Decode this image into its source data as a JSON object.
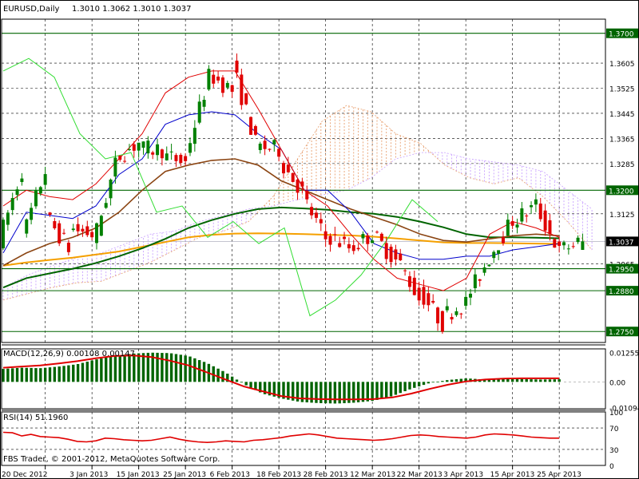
{
  "header": {
    "symbol": "EURUSD,Daily",
    "ohlc": "1.3010 1.3062 1.3010 1.3037"
  },
  "copyright": "FBS Trader, © 2001-2012, MetaQuotes Software Corp.",
  "colors": {
    "bull": "#008000",
    "bear": "#e00000",
    "grid": "#000000",
    "levels": "#006400",
    "fast_ma": "#006400",
    "mid_ma": "#8b4513",
    "slow_ma": "#f5a000",
    "tenkan": "#e00000",
    "kijun": "#0000cc",
    "chikou": "#33dd33",
    "kumo_bull": "#e8a070",
    "kumo_bear": "#c8a0ff"
  },
  "chart_data": [
    {
      "type": "candlestick",
      "title": "EURUSD,Daily",
      "ohlc_label": "1.3010 1.3062 1.3010 1.3037",
      "ylim": [
        1.2715,
        1.3745
      ],
      "y_ticks": [
        "1.3605",
        "1.3525",
        "1.3445",
        "1.3365",
        "1.3285",
        "1.3125",
        "1.2965"
      ],
      "levels": [
        {
          "value": 1.37,
          "label": "1.3700"
        },
        {
          "value": 1.32,
          "label": "1.3200"
        },
        {
          "value": 1.295,
          "label": "1.2950"
        },
        {
          "value": 1.288,
          "label": "1.2880"
        },
        {
          "value": 1.275,
          "label": "1.2750"
        }
      ],
      "current": {
        "value": 1.3037,
        "label": "1.3037"
      },
      "x_labels": [
        "20 Dec 2012",
        "3 Jan 2013",
        "15 Jan 2013",
        "25 Jan 2013",
        "6 Feb 2013",
        "18 Feb 2013",
        "28 Feb 2013",
        "12 Mar 2013",
        "22 Mar 2013",
        "3 Apr 2013",
        "15 Apr 2013",
        "25 Apr 2013"
      ],
      "anchors": [
        [
          1.3035,
          1.3255
        ],
        [
          1.3045,
          1.3255
        ],
        [
          1.312,
          1.302
        ],
        [
          1.308,
          1.306
        ],
        [
          1.302,
          1.327
        ],
        [
          1.33,
          1.335
        ],
        [
          1.333,
          1.333
        ],
        [
          1.331,
          1.329
        ],
        [
          1.331,
          1.355
        ],
        [
          1.357,
          1.352
        ],
        [
          1.36,
          1.336
        ],
        [
          1.334,
          1.333
        ],
        [
          1.33,
          1.32
        ],
        [
          1.318,
          1.305
        ],
        [
          1.306,
          1.302
        ],
        [
          1.301,
          1.306
        ],
        [
          1.306,
          1.298
        ],
        [
          1.299,
          1.286
        ],
        [
          1.288,
          1.278
        ],
        [
          1.28,
          1.284
        ],
        [
          1.285,
          1.298
        ],
        [
          1.299,
          1.31
        ],
        [
          1.31,
          1.315
        ],
        [
          1.315,
          1.301
        ],
        [
          1.301,
          1.3037
        ]
      ],
      "series": [
        {
          "name": "",
          "style": "cloud",
          "span_a": [
            1.285,
            1.287,
            1.289,
            1.2905,
            1.291,
            1.294,
            1.297,
            1.301,
            1.305,
            1.307,
            1.31,
            1.318,
            1.33,
            1.342,
            1.347,
            1.345,
            1.338,
            1.335,
            1.328,
            1.324,
            1.322,
            1.324,
            1.318,
            1.31,
            1.301
          ],
          "span_b": [
            1.289,
            1.293,
            1.296,
            1.2985,
            1.3,
            1.303,
            1.306,
            1.307,
            1.31,
            1.312,
            1.314,
            1.315,
            1.317,
            1.3185,
            1.32,
            1.324,
            1.33,
            1.332,
            1.332,
            1.33,
            1.329,
            1.328,
            1.326,
            1.32,
            1.314
          ]
        },
        {
          "name": "",
          "style": "slow_ma",
          "values": [
            1.296,
            1.297,
            1.2978,
            1.2985,
            1.2995,
            1.3005,
            1.302,
            1.3035,
            1.305,
            1.3058,
            1.3062,
            1.3063,
            1.3062,
            1.306,
            1.3058,
            1.3056,
            1.3052,
            1.3046,
            1.304,
            1.3034,
            1.3032,
            1.3032,
            1.3031,
            1.303,
            1.3029
          ]
        },
        {
          "name": "",
          "style": "fast_ma",
          "values": [
            1.289,
            1.292,
            1.2935,
            1.295,
            1.2968,
            1.299,
            1.3015,
            1.3045,
            1.308,
            1.3105,
            1.3125,
            1.314,
            1.3145,
            1.3142,
            1.3138,
            1.313,
            1.3125,
            1.3115,
            1.31,
            1.3082,
            1.306,
            1.305,
            1.305,
            1.3049,
            1.3047
          ]
        },
        {
          "name": "",
          "style": "mid_ma",
          "values": [
            1.296,
            1.3,
            1.303,
            1.305,
            1.308,
            1.313,
            1.32,
            1.326,
            1.328,
            1.3295,
            1.33,
            1.328,
            1.323,
            1.32,
            1.317,
            1.314,
            1.3115,
            1.309,
            1.306,
            1.304,
            1.3035,
            1.3045,
            1.3055,
            1.306,
            1.3055
          ]
        },
        {
          "name": "",
          "style": "kijun",
          "values": [
            1.3,
            1.313,
            1.312,
            1.311,
            1.315,
            1.325,
            1.33,
            1.341,
            1.344,
            1.345,
            1.344,
            1.338,
            1.333,
            1.32,
            1.32,
            1.313,
            1.303,
            1.3,
            1.298,
            1.298,
            1.299,
            1.299,
            1.301,
            1.302,
            1.303
          ]
        },
        {
          "name": "",
          "style": "tenkan",
          "values": [
            1.315,
            1.32,
            1.318,
            1.317,
            1.322,
            1.33,
            1.338,
            1.351,
            1.356,
            1.358,
            1.358,
            1.346,
            1.333,
            1.32,
            1.315,
            1.306,
            1.298,
            1.292,
            1.29,
            1.288,
            1.292,
            1.306,
            1.31,
            1.308,
            1.305
          ]
        },
        {
          "name": "",
          "style": "chikou",
          "values": [
            1.358,
            1.362,
            1.356,
            1.338,
            1.33,
            1.332,
            1.313,
            1.315,
            1.305,
            1.31,
            1.303,
            1.308,
            1.28,
            1.285,
            1.293,
            1.304,
            1.317,
            1.31
          ]
        }
      ]
    },
    {
      "type": "bar",
      "title": "MACD(12,26,9) 0.00108 0.00147",
      "ylim": [
        -0.0114,
        0.014
      ],
      "y_ticks": [
        "0.01255",
        "0.00",
        "-0.01094"
      ],
      "histogram": [
        0.0055,
        0.006,
        0.0058,
        0.0065,
        0.0075,
        0.0095,
        0.011,
        0.012,
        0.0124,
        0.0122,
        0.011,
        0.008,
        0.004,
        -0.001,
        -0.005,
        -0.007,
        -0.0085,
        -0.009,
        -0.0092,
        -0.0088,
        -0.008,
        -0.006,
        -0.003,
        -0.0005,
        0.0008,
        0.0015,
        0.001,
        0.0012,
        0.0012,
        0.001,
        0.0011
      ],
      "signal": [
        0.006,
        0.0065,
        0.007,
        0.0078,
        0.0088,
        0.01,
        0.011,
        0.0112,
        0.0105,
        0.009,
        0.007,
        0.004,
        0.001,
        -0.002,
        -0.004,
        -0.006,
        -0.007,
        -0.0073,
        -0.0074,
        -0.0074,
        -0.0073,
        -0.0066,
        -0.005,
        -0.003,
        -0.0012,
        0.0002,
        0.001,
        0.0014,
        0.0015,
        0.0015,
        0.0015
      ]
    },
    {
      "type": "line",
      "title": "RSI(14) 51.1960",
      "ylim": [
        0,
        100
      ],
      "y_ticks": [
        "100",
        "70",
        "30",
        "0"
      ],
      "levels": [
        70,
        30
      ],
      "values": [
        62,
        61,
        55,
        58,
        54,
        53,
        52,
        49,
        45,
        44,
        46,
        51,
        50,
        48,
        47,
        46,
        47,
        50,
        53,
        49,
        46,
        44,
        43,
        44,
        46,
        45,
        44,
        47,
        48,
        50,
        52,
        55,
        57,
        59,
        57,
        54,
        51,
        50,
        49,
        48,
        47,
        48,
        50,
        53,
        56,
        57,
        56,
        54,
        53,
        52,
        51,
        53,
        57,
        59,
        58,
        57,
        55,
        53,
        52,
        51,
        51
      ]
    }
  ]
}
